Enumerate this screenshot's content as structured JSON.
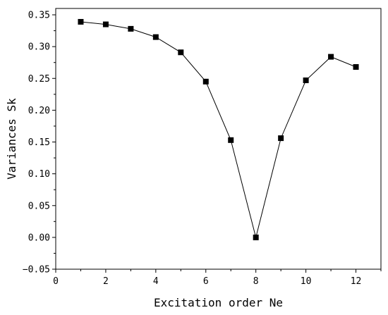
{
  "chart_data": {
    "type": "line",
    "title": "",
    "xlabel": "Excitation order Ne",
    "ylabel": "Variances Sk",
    "xlim": [
      0,
      13
    ],
    "ylim": [
      -0.05,
      0.36
    ],
    "x_ticks": [
      0,
      2,
      4,
      6,
      8,
      10,
      12
    ],
    "x_tick_labels": [
      "0",
      "2",
      "4",
      "6",
      "8",
      "10",
      "12"
    ],
    "y_ticks": [
      -0.05,
      0.0,
      0.05,
      0.1,
      0.15,
      0.2,
      0.25,
      0.3,
      0.35
    ],
    "y_tick_labels": [
      "−0.05",
      "0.00",
      "0.05",
      "0.10",
      "0.15",
      "0.20",
      "0.25",
      "0.30",
      "0.35"
    ],
    "grid": false,
    "legend": "none",
    "marker": "square",
    "colors": {
      "line": "#000000",
      "marker": "#000000",
      "axis": "#000000"
    },
    "series": [
      {
        "x": [
          1,
          2,
          3,
          4,
          5,
          6,
          7,
          8,
          9,
          10,
          11,
          12
        ],
        "y": [
          0.339,
          0.335,
          0.328,
          0.315,
          0.291,
          0.245,
          0.153,
          0.0,
          0.156,
          0.247,
          0.284,
          0.268
        ]
      }
    ]
  }
}
